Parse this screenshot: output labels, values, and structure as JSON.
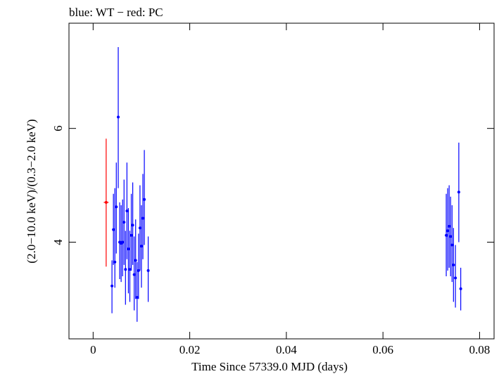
{
  "chart_data": {
    "type": "scatter",
    "title": "blue: WT − red: PC",
    "xlabel": "Time Since 57339.0 MJD (days)",
    "ylabel": "(2.0−10.0 keV)/(0.3−2.0 keV)",
    "xlim": [
      -0.005,
      0.083
    ],
    "ylim": [
      2.3,
      7.85
    ],
    "xticks": [
      0,
      0.02,
      0.04,
      0.06,
      0.08
    ],
    "xtick_labels": [
      "0",
      "0.02",
      "0.04",
      "0.06",
      "0.08"
    ],
    "yticks": [
      4,
      6
    ],
    "ytick_labels": [
      "4",
      "6"
    ],
    "grid": false,
    "series": [
      {
        "name": "WT",
        "color": "#0000ff",
        "points": [
          {
            "x": 0.0039,
            "y": 3.23,
            "ylo": 2.75,
            "yhi": 3.68
          },
          {
            "x": 0.0042,
            "y": 4.22,
            "ylo": 3.6,
            "yhi": 4.85
          },
          {
            "x": 0.0045,
            "y": 3.65,
            "ylo": 3.2,
            "yhi": 4.95
          },
          {
            "x": 0.0048,
            "y": 4.62,
            "ylo": 3.8,
            "yhi": 5.4
          },
          {
            "x": 0.0052,
            "y": 6.2,
            "ylo": 4.95,
            "yhi": 7.43
          },
          {
            "x": 0.0055,
            "y": 4.0,
            "ylo": 3.35,
            "yhi": 4.7
          },
          {
            "x": 0.0058,
            "y": 3.98,
            "ylo": 3.3,
            "yhi": 4.65
          },
          {
            "x": 0.0061,
            "y": 4.0,
            "ylo": 3.4,
            "yhi": 4.75
          },
          {
            "x": 0.0064,
            "y": 4.35,
            "ylo": 3.6,
            "yhi": 5.1
          },
          {
            "x": 0.0067,
            "y": 3.52,
            "ylo": 2.9,
            "yhi": 4.2
          },
          {
            "x": 0.007,
            "y": 4.55,
            "ylo": 3.7,
            "yhi": 5.4
          },
          {
            "x": 0.0073,
            "y": 3.88,
            "ylo": 3.1,
            "yhi": 4.6
          },
          {
            "x": 0.0076,
            "y": 3.52,
            "ylo": 2.95,
            "yhi": 4.2
          },
          {
            "x": 0.0079,
            "y": 4.12,
            "ylo": 3.5,
            "yhi": 4.85
          },
          {
            "x": 0.0082,
            "y": 4.3,
            "ylo": 3.6,
            "yhi": 5.05
          },
          {
            "x": 0.0085,
            "y": 3.43,
            "ylo": 2.8,
            "yhi": 4.1
          },
          {
            "x": 0.0088,
            "y": 3.68,
            "ylo": 3.0,
            "yhi": 4.4
          },
          {
            "x": 0.0091,
            "y": 3.03,
            "ylo": 2.6,
            "yhi": 3.65
          },
          {
            "x": 0.0094,
            "y": 3.5,
            "ylo": 3.0,
            "yhi": 4.15
          },
          {
            "x": 0.0097,
            "y": 4.25,
            "ylo": 3.5,
            "yhi": 5.0
          },
          {
            "x": 0.01,
            "y": 3.93,
            "ylo": 3.2,
            "yhi": 4.65
          },
          {
            "x": 0.0103,
            "y": 4.42,
            "ylo": 3.7,
            "yhi": 5.2
          },
          {
            "x": 0.0106,
            "y": 4.75,
            "ylo": 3.95,
            "yhi": 5.62
          },
          {
            "x": 0.0114,
            "y": 3.5,
            "ylo": 2.95,
            "yhi": 4.1
          },
          {
            "x": 0.0731,
            "y": 4.12,
            "ylo": 3.4,
            "yhi": 4.85
          },
          {
            "x": 0.0734,
            "y": 4.2,
            "ylo": 3.5,
            "yhi": 4.95
          },
          {
            "x": 0.0737,
            "y": 4.28,
            "ylo": 3.55,
            "yhi": 5.0
          },
          {
            "x": 0.074,
            "y": 4.1,
            "ylo": 3.4,
            "yhi": 4.8
          },
          {
            "x": 0.0743,
            "y": 3.95,
            "ylo": 3.3,
            "yhi": 4.65
          },
          {
            "x": 0.0746,
            "y": 3.6,
            "ylo": 2.95,
            "yhi": 4.25
          },
          {
            "x": 0.075,
            "y": 3.37,
            "ylo": 2.85,
            "yhi": 3.95
          },
          {
            "x": 0.0757,
            "y": 4.88,
            "ylo": 4.0,
            "yhi": 5.75
          },
          {
            "x": 0.0761,
            "y": 3.18,
            "ylo": 2.8,
            "yhi": 3.55
          }
        ]
      },
      {
        "name": "PC",
        "color": "#ff0000",
        "points": [
          {
            "x": 0.0027,
            "y": 4.7,
            "ylo": 3.57,
            "yhi": 5.82,
            "xlo": 0.0022,
            "xhi": 0.0032
          }
        ]
      }
    ]
  }
}
